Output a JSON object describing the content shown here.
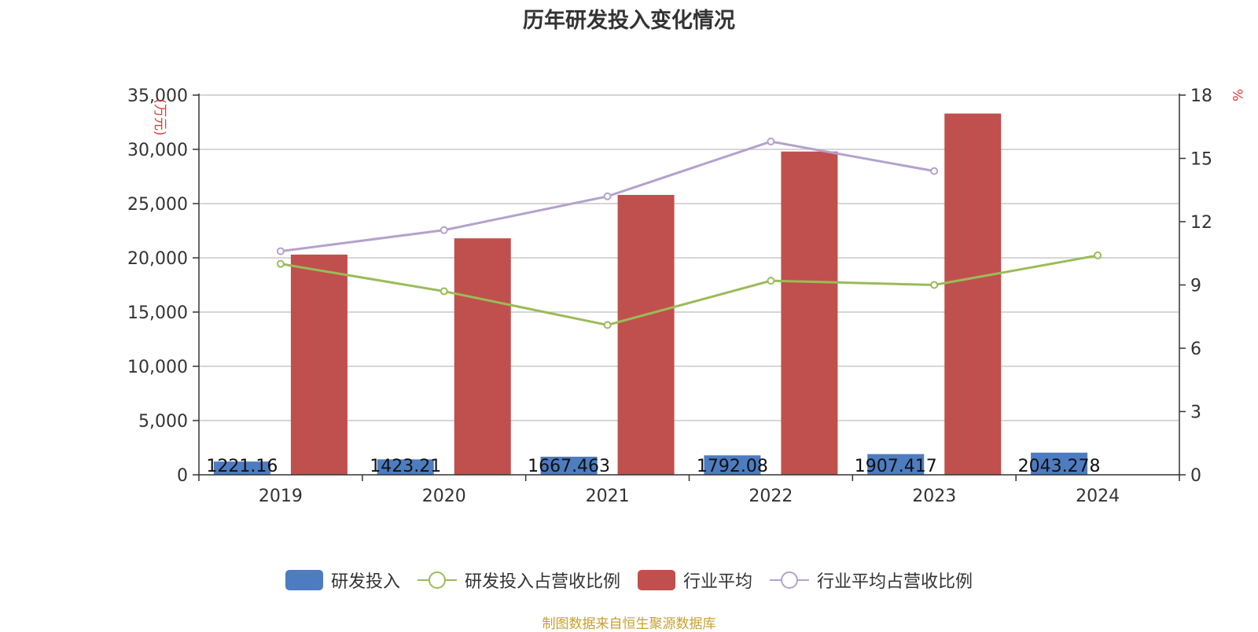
{
  "chart_data": {
    "type": "bar",
    "title": "历年研发投入变化情况",
    "categories": [
      "2019",
      "2020",
      "2021",
      "2022",
      "2023",
      "2024"
    ],
    "y_left": {
      "label": "(万元)",
      "ylim": [
        0,
        35000
      ],
      "ticks": [
        0,
        5000,
        10000,
        15000,
        20000,
        25000,
        30000,
        35000
      ],
      "tick_labels": [
        "0",
        "5,000",
        "10,000",
        "15,000",
        "20,000",
        "25,000",
        "30,000",
        "35,000"
      ]
    },
    "y_right": {
      "label": "%",
      "ylim": [
        0,
        18
      ],
      "ticks": [
        0,
        3,
        6,
        9,
        12,
        15,
        18
      ],
      "tick_labels": [
        "0",
        "3",
        "6",
        "9",
        "12",
        "15",
        "18"
      ]
    },
    "series": [
      {
        "name": "研发投入",
        "kind": "bar",
        "axis": "left",
        "color": "#4e7cc1",
        "values": [
          1221.16,
          1423.21,
          1667.463,
          1792.08,
          1907.417,
          2043.278
        ],
        "data_labels": [
          "1221.16",
          "1423.21",
          "1667.463",
          "1792.08",
          "1907.417",
          "2043.278"
        ]
      },
      {
        "name": "研发投入占营收比例",
        "kind": "line",
        "axis": "right",
        "color": "#9bbb59",
        "values": [
          10.0,
          8.7,
          7.1,
          9.2,
          9.0,
          10.4
        ]
      },
      {
        "name": "行业平均",
        "kind": "bar",
        "axis": "left",
        "color": "#c0504d",
        "values": [
          20300,
          21800,
          25800,
          29800,
          33300,
          null
        ]
      },
      {
        "name": "行业平均占营收比例",
        "kind": "line",
        "axis": "right",
        "color": "#b3a2cc",
        "values": [
          10.6,
          11.6,
          13.2,
          15.8,
          14.4,
          null
        ]
      }
    ],
    "grid": true,
    "legend_position": "bottom-center",
    "axis_label_color": "#e03c3c"
  },
  "source_note": "制图数据来自恒生聚源数据库",
  "source_note_color": "#c8a032"
}
